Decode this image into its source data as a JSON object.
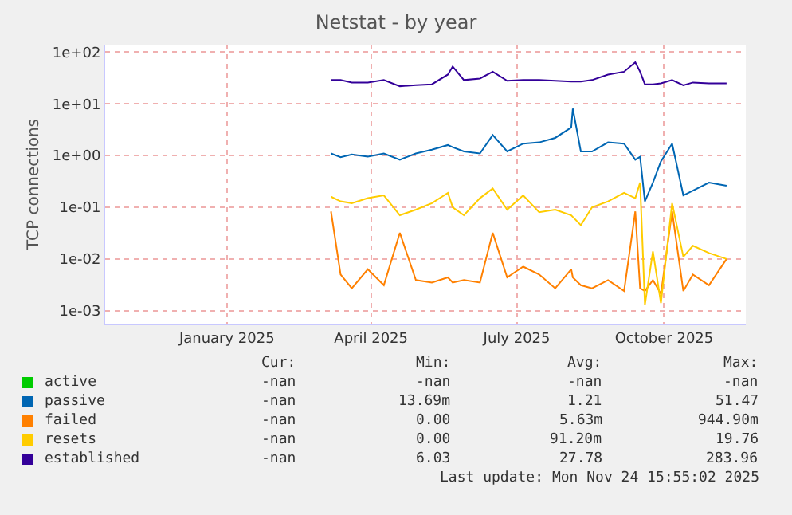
{
  "chart_data": {
    "type": "line",
    "title": "Netstat - by year",
    "ylabel": "TCP connections",
    "log": "y",
    "grid": true,
    "legend": "bottom left",
    "marker": "none",
    "line_style": "solid",
    "xlim": [
      "2024-10-17",
      "2025-11-21"
    ],
    "xticks": [
      {
        "value": "2025-01-01",
        "label": "January 2025"
      },
      {
        "value": "2025-04-01",
        "label": "April 2025"
      },
      {
        "value": "2025-07-01",
        "label": "July 2025"
      },
      {
        "value": "2025-10-01",
        "label": "October 2025"
      }
    ],
    "ylim": [
      0.00056,
      140
    ],
    "yticks": [
      {
        "value": 0.001,
        "label": "1e-03"
      },
      {
        "value": 0.01,
        "label": "1e-02"
      },
      {
        "value": 0.1,
        "label": "1e-01"
      },
      {
        "value": 1,
        "label": "1e+00"
      },
      {
        "value": 10,
        "label": "1e+01"
      },
      {
        "value": 100,
        "label": "1e+02"
      }
    ],
    "x": [
      "2025-03-07",
      "2025-03-13",
      "2025-03-20",
      "2025-03-30",
      "2025-04-09",
      "2025-04-19",
      "2025-04-29",
      "2025-05-09",
      "2025-05-19",
      "2025-05-22",
      "2025-05-29",
      "2025-06-08",
      "2025-06-16",
      "2025-06-25",
      "2025-07-05",
      "2025-07-15",
      "2025-07-25",
      "2025-08-04",
      "2025-08-05",
      "2025-08-10",
      "2025-08-17",
      "2025-08-27",
      "2025-09-06",
      "2025-09-13",
      "2025-09-16",
      "2025-09-19",
      "2025-09-24",
      "2025-09-29",
      "2025-10-06",
      "2025-10-13",
      "2025-10-19",
      "2025-10-29",
      "2025-11-09"
    ],
    "series": [
      {
        "name": "active",
        "color": "#00cc00",
        "values": [
          null,
          null,
          null,
          null,
          null,
          null,
          null,
          null,
          null,
          null,
          null,
          null,
          null,
          null,
          null,
          null,
          null,
          null,
          null,
          null,
          null,
          null,
          null,
          null,
          null,
          null,
          null,
          null,
          null,
          null,
          null,
          null,
          null
        ]
      },
      {
        "name": "passive",
        "color": "#0066b3",
        "values": [
          1.1,
          0.93,
          1.05,
          0.95,
          1.1,
          0.83,
          1.1,
          1.3,
          1.6,
          1.45,
          1.2,
          1.1,
          2.5,
          1.2,
          1.7,
          1.8,
          2.2,
          3.5,
          8.1,
          1.2,
          1.2,
          1.8,
          1.7,
          0.83,
          0.95,
          0.13,
          0.3,
          0.77,
          1.7,
          0.17,
          0.21,
          0.3,
          0.26
        ]
      },
      {
        "name": "failed",
        "color": "#ff8000",
        "values": [
          0.083,
          0.005,
          0.0027,
          0.0063,
          0.0031,
          0.032,
          0.0039,
          0.0035,
          0.0044,
          0.0035,
          0.0039,
          0.0035,
          0.032,
          0.0044,
          0.0071,
          0.005,
          0.0027,
          0.0063,
          0.0044,
          0.0031,
          0.0027,
          0.0039,
          0.0024,
          0.083,
          0.0027,
          0.0024,
          0.0039,
          0.0021,
          0.083,
          0.0024,
          0.005,
          0.0031,
          0.01
        ]
      },
      {
        "name": "resets",
        "color": "#ffcc00",
        "values": [
          0.16,
          0.13,
          0.12,
          0.15,
          0.17,
          0.07,
          0.09,
          0.12,
          0.19,
          0.1,
          0.07,
          0.15,
          0.23,
          0.09,
          0.17,
          0.08,
          0.09,
          0.07,
          0.065,
          0.045,
          0.1,
          0.13,
          0.19,
          0.15,
          0.3,
          0.0013,
          0.014,
          0.0014,
          0.12,
          0.011,
          0.018,
          0.013,
          0.01
        ]
      },
      {
        "name": "established",
        "color": "#330099",
        "values": [
          29,
          29,
          26,
          26,
          29,
          22,
          23,
          24,
          37,
          53,
          29,
          31,
          42,
          28,
          29,
          29,
          28,
          27,
          27,
          27,
          29,
          37,
          42,
          64,
          42,
          24,
          24,
          25,
          29,
          23,
          26,
          25,
          25
        ]
      }
    ],
    "annotations": [
      "Cur:",
      "Min:",
      "Avg:",
      "Max:",
      "-nan",
      "-nan",
      "-nan",
      "-nan",
      "-nan",
      "13.69m",
      "1.21",
      "51.47",
      "-nan",
      "0.00",
      "5.63m",
      "944.90m",
      "-nan",
      "0.00",
      "91.20m",
      "19.76",
      "-nan",
      "6.03",
      "27.78",
      "283.96",
      "Last update: Mon Nov 24 15:55:02 2025"
    ]
  }
}
